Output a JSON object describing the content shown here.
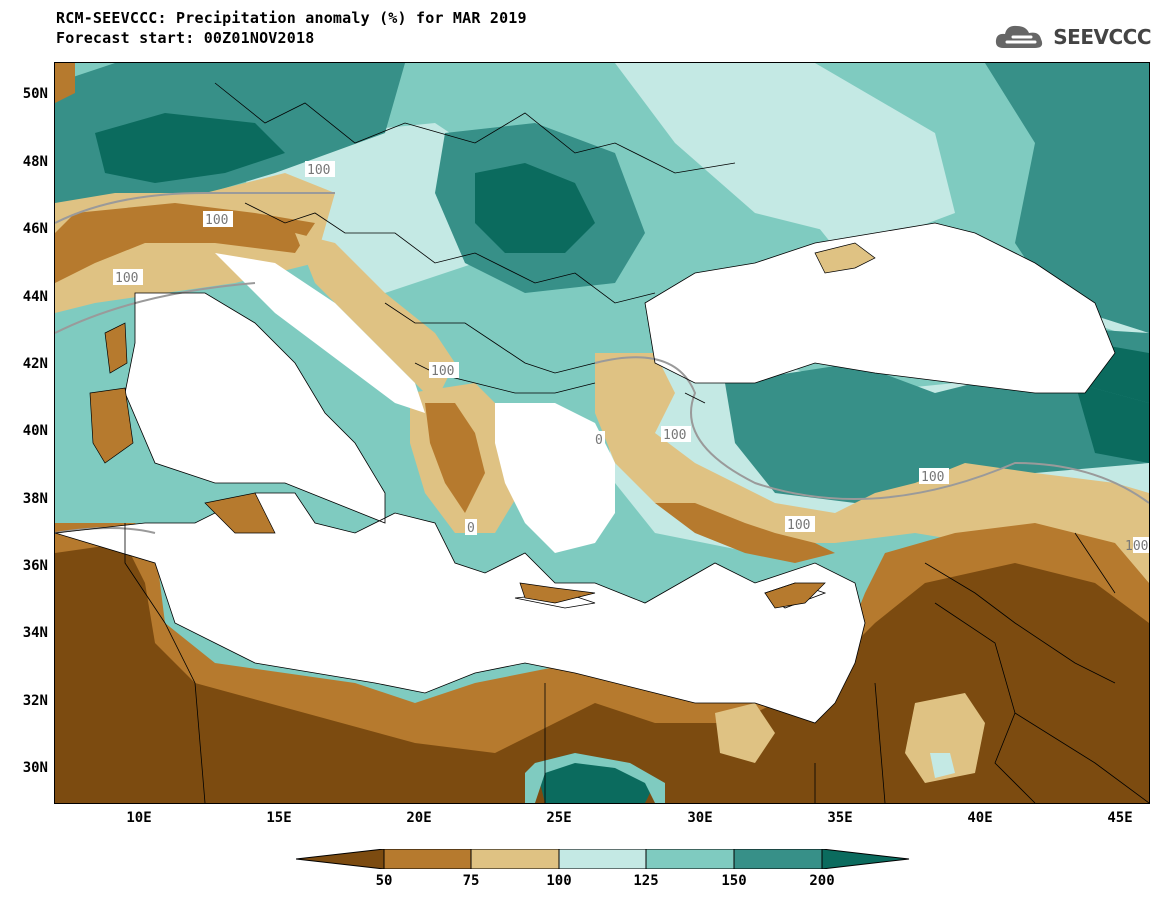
{
  "header": {
    "title_line1": "RCM-SEEVCCC: Precipitation anomaly (%) for MAR 2019",
    "title_line2": "Forecast start: 00Z01NOV2018",
    "logo_text": "SEEVCCC",
    "logo_icon": "cloud-logo-icon"
  },
  "map": {
    "lat_labels": [
      "50N",
      "48N",
      "46N",
      "44N",
      "42N",
      "40N",
      "38N",
      "36N",
      "34N",
      "32N",
      "30N"
    ],
    "lon_labels": [
      "10E",
      "15E",
      "20E",
      "25E",
      "30E",
      "35E",
      "40E",
      "45E"
    ],
    "contour_labels": [
      "100",
      "100",
      "100",
      "100",
      "100",
      "0",
      "100",
      "100",
      "0",
      "100",
      "100"
    ],
    "colors": {
      "lt50": "#7c4b10",
      "c50_75": "#b67a2e",
      "c75_100": "#dfc283",
      "c100_125": "#c4e9e4",
      "c125_150": "#7fcbc0",
      "c150_200": "#379088",
      "gt200": "#0b6b5e",
      "sea": "#ffffff"
    }
  },
  "colorbar": {
    "labels": [
      "50",
      "75",
      "100",
      "125",
      "150",
      "200"
    ],
    "colors": [
      "#7c4b10",
      "#b67a2e",
      "#dfc283",
      "#c4e9e4",
      "#7fcbc0",
      "#379088",
      "#0b6b5e"
    ]
  }
}
